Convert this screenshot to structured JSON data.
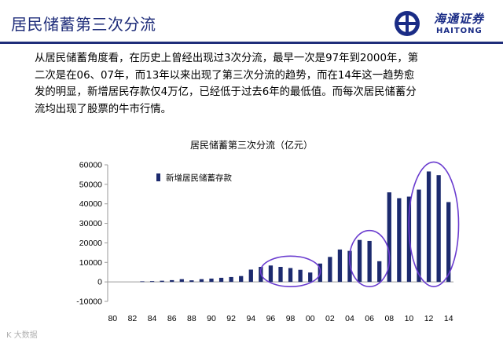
{
  "header": {
    "title": "居民储蓄第三次分流",
    "logo_cn": "海通证券",
    "logo_en": "HAITONG",
    "accent_color": "#1f2d7a"
  },
  "paragraph": {
    "lines": [
      "从居民储蓄角度看，在历史上曾经出现过3次分流，最早一次是97年到2000年，第",
      "二次是在06、07年，而13年以来出现了第三次分流的趋势，而在14年这一趋势愈",
      "发的明显，新增居民存款仅4万亿，已经低于过去6年的最低值。而每次居民储蓄分",
      "流均出现了股票的牛市行情。"
    ]
  },
  "chart_data": {
    "type": "bar",
    "title": "居民储蓄第三次分流（亿元）",
    "series": [
      {
        "name": "新增居民储蓄存款",
        "color": "#1c2a6e",
        "points": [
          {
            "x": 80,
            "y": 0
          },
          {
            "x": 81,
            "y": 0
          },
          {
            "x": 82,
            "y": 0
          },
          {
            "x": 83,
            "y": 300
          },
          {
            "x": 84,
            "y": 400
          },
          {
            "x": 85,
            "y": 600
          },
          {
            "x": 86,
            "y": 900
          },
          {
            "x": 87,
            "y": 1400
          },
          {
            "x": 88,
            "y": 800
          },
          {
            "x": 89,
            "y": 1400
          },
          {
            "x": 90,
            "y": 1700
          },
          {
            "x": 91,
            "y": 2100
          },
          {
            "x": 92,
            "y": 2500
          },
          {
            "x": 93,
            "y": 3000
          },
          {
            "x": 94,
            "y": 6300
          },
          {
            "x": 95,
            "y": 7700
          },
          {
            "x": 96,
            "y": 8400
          },
          {
            "x": 97,
            "y": 7700
          },
          {
            "x": 98,
            "y": 7100
          },
          {
            "x": 99,
            "y": 6200
          },
          {
            "x": 100,
            "y": 4800
          },
          {
            "x": 101,
            "y": 9400
          },
          {
            "x": 102,
            "y": 12800
          },
          {
            "x": 103,
            "y": 16600
          },
          {
            "x": 104,
            "y": 15900
          },
          {
            "x": 105,
            "y": 21500
          },
          {
            "x": 106,
            "y": 21000
          },
          {
            "x": 107,
            "y": 10600
          },
          {
            "x": 108,
            "y": 45900
          },
          {
            "x": 109,
            "y": 42900
          },
          {
            "x": 110,
            "y": 43700
          },
          {
            "x": 111,
            "y": 47300
          },
          {
            "x": 112,
            "y": 56600
          },
          {
            "x": 113,
            "y": 54700
          },
          {
            "x": 114,
            "y": 40900
          }
        ]
      }
    ],
    "y_ticks": [
      "60000",
      "50000",
      "40000",
      "30000",
      "20000",
      "10000",
      "0",
      "-10000"
    ],
    "y_range": [
      -10000,
      60000
    ],
    "x_ticks": [
      "80",
      "82",
      "84",
      "86",
      "88",
      "90",
      "92",
      "94",
      "96",
      "98",
      "00",
      "02",
      "04",
      "06",
      "08",
      "10",
      "12",
      "14"
    ],
    "x_range": [
      79.5,
      114.5
    ],
    "legend_position": "top-left",
    "highlights": [
      {
        "from": 96,
        "to": 100,
        "color": "#6a3ccf"
      },
      {
        "from": 105,
        "to": 107,
        "color": "#6a3ccf"
      },
      {
        "from": 111,
        "to": 114,
        "color": "#6a3ccf"
      }
    ]
  },
  "watermark": "K 大数据"
}
